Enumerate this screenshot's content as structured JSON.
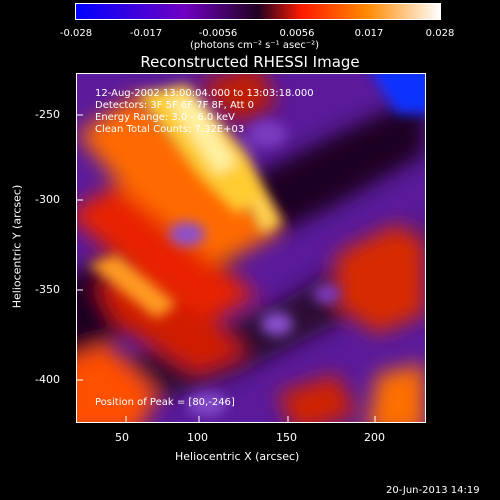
{
  "colorbar": {
    "ticks": [
      "-0.028",
      "-0.017",
      "-0.0056",
      "0.0056",
      "0.017",
      "0.028"
    ],
    "units": "(photons cm⁻² s⁻¹ asec⁻²)"
  },
  "title": "Reconstructed RHESSI Image",
  "annotations": {
    "line1": "12-Aug-2002 13:00:04.000 to 13:03:18.000",
    "line2": "Detectors: 3F 5F 6F 7F 8F, Att 0",
    "line3": "Energy Range: 3.0 - 6.0 keV",
    "line4": "Clean  Total Counts: 7.32E+03",
    "peak": "Position of Peak = [80,-246]"
  },
  "axes": {
    "xlabel": "Heliocentric X (arcsec)",
    "ylabel": "Heliocentric Y (arcsec)",
    "xticks": [
      "50",
      "100",
      "150",
      "200"
    ],
    "yticks": [
      "-250",
      "-300",
      "-350",
      "-400"
    ]
  },
  "footer": "20-Jun-2013 14:19",
  "chart_data": {
    "type": "heatmap",
    "title": "Reconstructed RHESSI Image",
    "xlabel": "Heliocentric X (arcsec)",
    "ylabel": "Heliocentric Y (arcsec)",
    "xlim": [
      35,
      225
    ],
    "ylim": [
      -422,
      -232
    ],
    "clim": [
      -0.028,
      0.028
    ],
    "colormap": [
      "#0000ff",
      "#5a00a0",
      "#2a002a",
      "#ff2a00",
      "#ff8800",
      "#ffd040",
      "#ffffff"
    ],
    "peak": [
      80,
      -246
    ]
  }
}
